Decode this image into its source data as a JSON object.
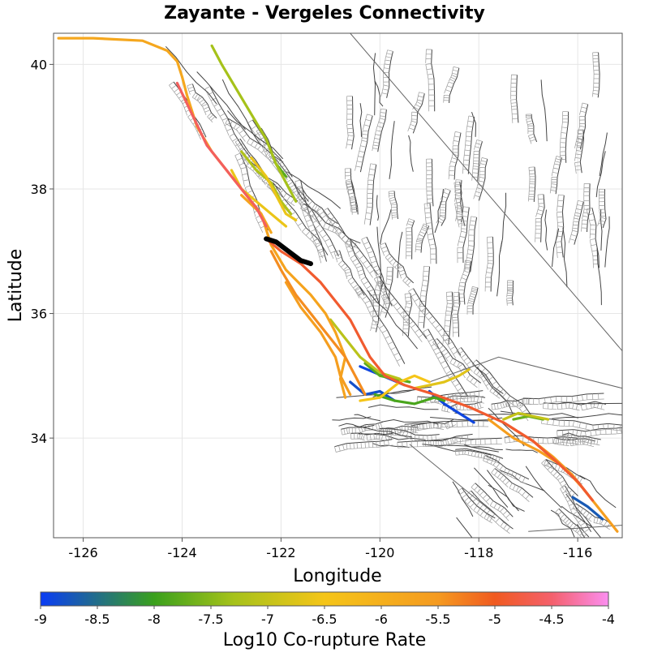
{
  "map": {
    "title": "Zayante - Vergeles Connectivity",
    "xlabel": "Longitude",
    "ylabel": "Latitude",
    "xlim": [
      -126.6,
      -115.1
    ],
    "ylim": [
      32.4,
      40.5
    ],
    "x_ticks": [
      -126,
      -124,
      -122,
      -120,
      -118,
      -116
    ],
    "y_ticks": [
      34,
      36,
      38,
      40
    ],
    "grid": true
  },
  "colorbar": {
    "label": "Log10 Co-rupture Rate",
    "min": -9,
    "max": -4,
    "ticks": [
      -9,
      -8.5,
      -8,
      -7.5,
      -7,
      -6.5,
      -6,
      -5.5,
      -5,
      -4.5,
      -4
    ],
    "tick_labels": [
      "-9",
      "-8.5",
      "-8",
      "-7.5",
      "-7",
      "-6.5",
      "-6",
      "-5.5",
      "-5",
      "-4.5",
      "-4"
    ],
    "stops": [
      {
        "v": -9,
        "color": "#0a3cf5"
      },
      {
        "v": -8,
        "color": "#3aa01c"
      },
      {
        "v": -7.3,
        "color": "#a6c21a"
      },
      {
        "v": -6.5,
        "color": "#f5c518"
      },
      {
        "v": -5.5,
        "color": "#f59a20"
      },
      {
        "v": -5,
        "color": "#f05a20"
      },
      {
        "v": -4.5,
        "color": "#f4606c"
      },
      {
        "v": -4,
        "color": "#fb8ef0"
      }
    ]
  },
  "chart_data": {
    "type": "map",
    "title": "Zayante - Vergeles Connectivity",
    "xlabel": "Longitude",
    "ylabel": "Latitude",
    "xlim": [
      -126.6,
      -115.1
    ],
    "ylim": [
      32.4,
      40.5
    ],
    "source_section": {
      "color": "#000000",
      "points": [
        [
          -122.3,
          37.2
        ],
        [
          -122.1,
          37.15
        ],
        [
          -121.85,
          37.0
        ],
        [
          -121.6,
          36.85
        ],
        [
          -121.4,
          36.8
        ]
      ]
    },
    "rupture_sections": [
      {
        "value": -5.8,
        "points": [
          [
            -126.5,
            40.42
          ],
          [
            -125.8,
            40.42
          ],
          [
            -124.8,
            40.38
          ],
          [
            -124.3,
            40.22
          ],
          [
            -124.1,
            40.05
          ],
          [
            -124.0,
            39.8
          ],
          [
            -123.9,
            39.5
          ],
          [
            -123.7,
            39.0
          ],
          [
            -123.4,
            38.6
          ],
          [
            -123.0,
            38.2
          ],
          [
            -122.6,
            37.8
          ],
          [
            -122.4,
            37.6
          ],
          [
            -122.2,
            37.3
          ]
        ]
      },
      {
        "value": -4.6,
        "points": [
          [
            -124.1,
            39.7
          ],
          [
            -123.8,
            39.2
          ],
          [
            -123.5,
            38.7
          ],
          [
            -123.1,
            38.3
          ],
          [
            -122.8,
            38.0
          ],
          [
            -122.5,
            37.7
          ],
          [
            -122.3,
            37.4
          ]
        ]
      },
      {
        "value": -4.9,
        "points": [
          [
            -122.3,
            37.2
          ],
          [
            -122.0,
            37.0
          ],
          [
            -121.6,
            36.8
          ],
          [
            -121.2,
            36.5
          ],
          [
            -120.9,
            36.2
          ],
          [
            -120.6,
            35.9
          ],
          [
            -120.4,
            35.6
          ],
          [
            -120.2,
            35.3
          ],
          [
            -119.9,
            35.0
          ],
          [
            -119.5,
            34.85
          ],
          [
            -118.9,
            34.7
          ],
          [
            -118.2,
            34.5
          ],
          [
            -117.5,
            34.25
          ],
          [
            -116.9,
            33.95
          ],
          [
            -116.4,
            33.6
          ],
          [
            -116.0,
            33.3
          ],
          [
            -115.7,
            33.0
          ]
        ]
      },
      {
        "value": -5.4,
        "points": [
          [
            -122.2,
            37.0
          ],
          [
            -122.0,
            36.7
          ],
          [
            -121.7,
            36.3
          ],
          [
            -121.3,
            35.9
          ],
          [
            -121.0,
            35.6
          ],
          [
            -120.7,
            35.3
          ],
          [
            -120.5,
            35.0
          ],
          [
            -120.3,
            34.7
          ]
        ]
      },
      {
        "value": -5.6,
        "points": [
          [
            -121.9,
            36.5
          ],
          [
            -121.6,
            36.1
          ],
          [
            -121.2,
            35.7
          ],
          [
            -120.9,
            35.3
          ],
          [
            -120.8,
            35.0
          ],
          [
            -120.6,
            34.7
          ]
        ]
      },
      {
        "value": -5.7,
        "points": [
          [
            -122.8,
            37.9
          ],
          [
            -122.4,
            37.6
          ],
          [
            -122.2,
            37.1
          ],
          [
            -121.9,
            36.7
          ],
          [
            -121.4,
            36.3
          ],
          [
            -121.1,
            36.0
          ],
          [
            -120.9,
            35.7
          ],
          [
            -120.7,
            35.3
          ],
          [
            -120.8,
            34.95
          ],
          [
            -120.7,
            34.65
          ]
        ]
      },
      {
        "value": -5.6,
        "points": [
          [
            -117.8,
            34.3
          ],
          [
            -117.3,
            34.0
          ],
          [
            -116.8,
            33.8
          ],
          [
            -116.3,
            33.55
          ],
          [
            -115.9,
            33.2
          ],
          [
            -115.6,
            32.9
          ],
          [
            -115.2,
            32.5
          ]
        ]
      },
      {
        "value": -5.6,
        "points": [
          [
            -117.4,
            34.2
          ],
          [
            -116.9,
            33.95
          ],
          [
            -116.5,
            33.7
          ],
          [
            -116.1,
            33.4
          ],
          [
            -115.8,
            33.1
          ]
        ]
      },
      {
        "value": -6.6,
        "points": [
          [
            -123.0,
            38.3
          ],
          [
            -122.8,
            38.0
          ],
          [
            -122.5,
            37.8
          ],
          [
            -122.2,
            37.6
          ],
          [
            -121.9,
            37.4
          ]
        ]
      },
      {
        "value": -6.6,
        "points": [
          [
            -122.6,
            38.5
          ],
          [
            -122.3,
            38.2
          ],
          [
            -122.1,
            37.9
          ],
          [
            -121.9,
            37.6
          ],
          [
            -121.7,
            37.5
          ]
        ]
      },
      {
        "value": -6.7,
        "points": [
          [
            -119.3,
            34.8
          ],
          [
            -119.0,
            34.85
          ],
          [
            -118.7,
            34.9
          ],
          [
            -118.4,
            35.0
          ],
          [
            -118.2,
            35.1
          ]
        ]
      },
      {
        "value": -6.5,
        "points": [
          [
            -120.4,
            34.6
          ],
          [
            -120.0,
            34.65
          ],
          [
            -119.6,
            34.9
          ],
          [
            -119.3,
            35.0
          ],
          [
            -119.0,
            34.9
          ]
        ]
      },
      {
        "value": -7.3,
        "points": [
          [
            -123.4,
            40.3
          ],
          [
            -123.2,
            40.0
          ],
          [
            -122.9,
            39.6
          ],
          [
            -122.6,
            39.2
          ],
          [
            -122.3,
            38.8
          ],
          [
            -122.1,
            38.4
          ],
          [
            -121.9,
            38.1
          ],
          [
            -121.7,
            37.8
          ]
        ]
      },
      {
        "value": -7.2,
        "points": [
          [
            -122.8,
            38.6
          ],
          [
            -122.5,
            38.3
          ],
          [
            -122.2,
            38.1
          ],
          [
            -122.0,
            37.8
          ],
          [
            -121.8,
            37.6
          ]
        ]
      },
      {
        "value": -7.1,
        "points": [
          [
            -121.0,
            35.9
          ],
          [
            -120.7,
            35.6
          ],
          [
            -120.4,
            35.3
          ],
          [
            -120.0,
            35.05
          ],
          [
            -119.6,
            34.95
          ]
        ]
      },
      {
        "value": -7.0,
        "points": [
          [
            -117.5,
            34.3
          ],
          [
            -117.2,
            34.4
          ],
          [
            -116.9,
            34.35
          ],
          [
            -116.6,
            34.3
          ]
        ]
      },
      {
        "value": -7.8,
        "points": [
          [
            -122.2,
            38.6
          ],
          [
            -122.1,
            38.4
          ],
          [
            -121.9,
            38.2
          ]
        ]
      },
      {
        "value": -7.8,
        "points": [
          [
            -120.3,
            35.2
          ],
          [
            -120.0,
            35.0
          ],
          [
            -119.7,
            34.95
          ],
          [
            -119.4,
            34.9
          ]
        ]
      },
      {
        "value": -7.9,
        "points": [
          [
            -120.1,
            34.7
          ],
          [
            -119.7,
            34.6
          ],
          [
            -119.3,
            34.55
          ],
          [
            -118.9,
            34.65
          ],
          [
            -118.7,
            34.6
          ]
        ]
      },
      {
        "value": -7.7,
        "points": [
          [
            -117.3,
            34.3
          ],
          [
            -117.0,
            34.35
          ],
          [
            -116.7,
            34.3
          ]
        ]
      },
      {
        "value": -8.9,
        "points": [
          [
            -120.4,
            35.15
          ],
          [
            -120.1,
            35.05
          ],
          [
            -119.8,
            34.95
          ],
          [
            -119.5,
            34.85
          ]
        ]
      },
      {
        "value": -8.8,
        "points": [
          [
            -120.6,
            34.9
          ],
          [
            -120.3,
            34.7
          ],
          [
            -120.0,
            34.75
          ],
          [
            -119.7,
            34.6
          ]
        ]
      },
      {
        "value": -8.9,
        "points": [
          [
            -119.0,
            34.75
          ],
          [
            -118.7,
            34.55
          ],
          [
            -118.4,
            34.4
          ],
          [
            -118.1,
            34.25
          ]
        ]
      },
      {
        "value": -8.7,
        "points": [
          [
            -116.1,
            33.05
          ],
          [
            -115.8,
            32.9
          ],
          [
            -115.5,
            32.7
          ]
        ]
      }
    ]
  }
}
